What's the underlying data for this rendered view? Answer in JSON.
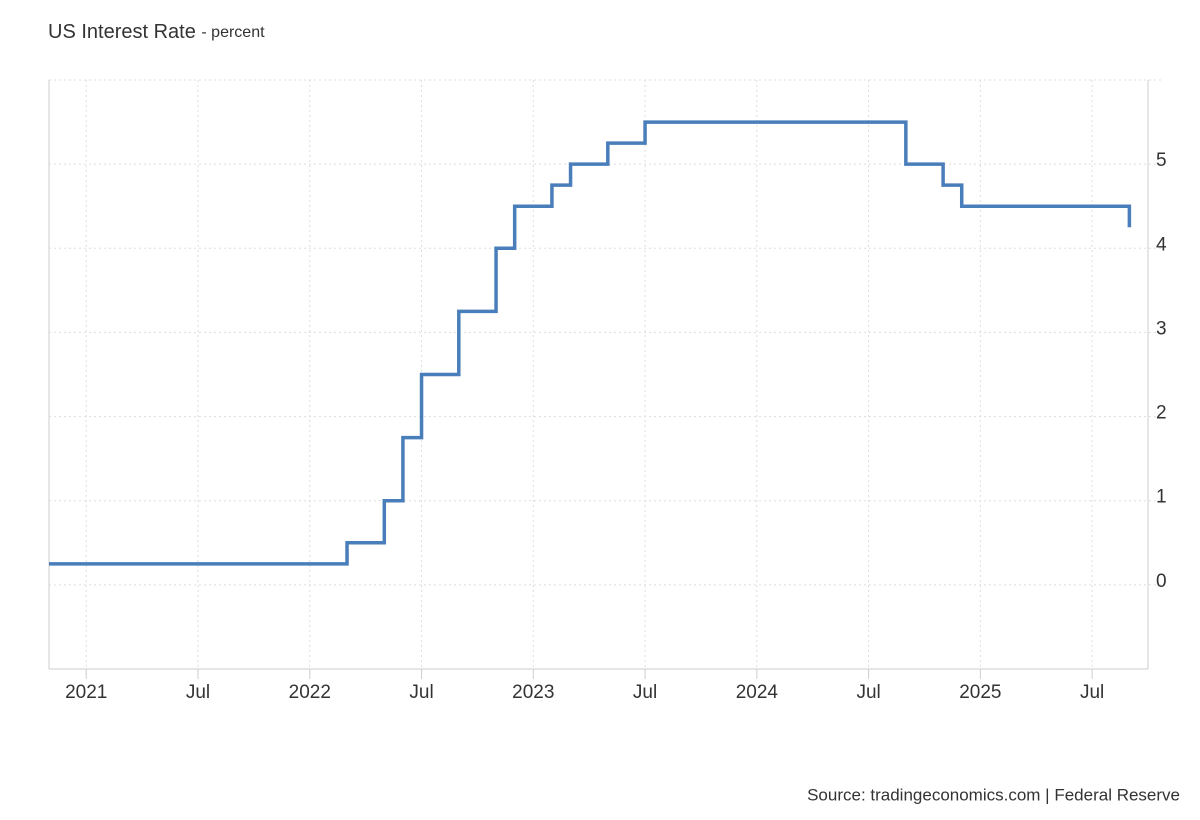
{
  "chart_data": {
    "type": "line",
    "step": "after",
    "title": "US Interest Rate",
    "subtitle": "- percent",
    "source": "Source: tradingeconomics.com | Federal Reserve",
    "x": [
      "2020-11",
      "2022-03",
      "2022-05",
      "2022-06",
      "2022-07",
      "2022-09",
      "2022-11",
      "2022-12",
      "2023-02",
      "2023-03",
      "2023-05",
      "2023-07",
      "2024-09",
      "2024-11",
      "2024-12",
      "2025-09"
    ],
    "values": [
      0.25,
      0.5,
      1.0,
      1.75,
      2.5,
      3.25,
      4.0,
      4.5,
      4.75,
      5.0,
      5.25,
      5.5,
      5.0,
      4.75,
      4.5,
      4.25
    ],
    "color": "#4a7ebb",
    "xlim": [
      "2020-11",
      "2025-10"
    ],
    "xticks": [
      {
        "value": "2021-01",
        "label": "2021"
      },
      {
        "value": "2021-07",
        "label": "Jul"
      },
      {
        "value": "2022-01",
        "label": "2022"
      },
      {
        "value": "2022-07",
        "label": "Jul"
      },
      {
        "value": "2023-01",
        "label": "2023"
      },
      {
        "value": "2023-07",
        "label": "Jul"
      },
      {
        "value": "2024-01",
        "label": "2024"
      },
      {
        "value": "2024-07",
        "label": "Jul"
      },
      {
        "value": "2025-01",
        "label": "2025"
      },
      {
        "value": "2025-07",
        "label": "Jul"
      }
    ],
    "ylim": [
      -1,
      6
    ],
    "yticks": [
      0,
      1,
      2,
      3,
      4,
      5
    ],
    "grid": true
  }
}
